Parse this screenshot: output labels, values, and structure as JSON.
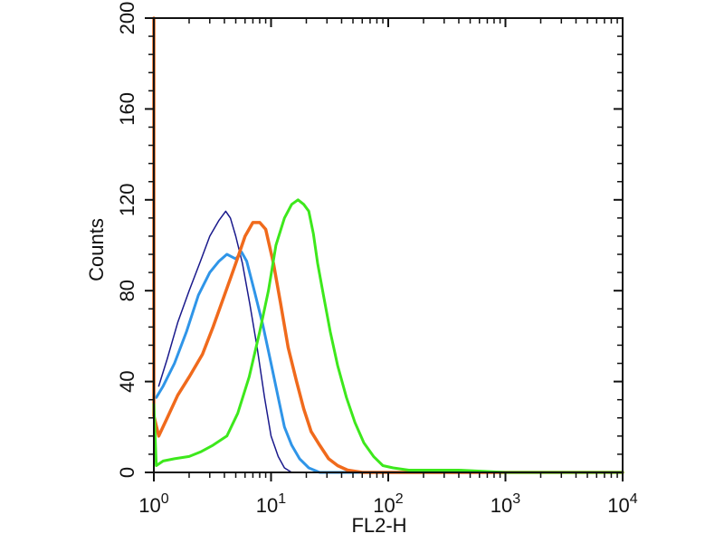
{
  "chart_data": {
    "type": "line",
    "xlabel": "FL2-H",
    "ylabel": "Counts",
    "x_scale": "log",
    "xlim": [
      1,
      10000
    ],
    "ylim": [
      0,
      200
    ],
    "grid": false,
    "legend": "none",
    "x_ticks": [
      {
        "value": 1,
        "base": "10",
        "exp": "0"
      },
      {
        "value": 10,
        "base": "10",
        "exp": "1"
      },
      {
        "value": 100,
        "base": "10",
        "exp": "2"
      },
      {
        "value": 1000,
        "base": "10",
        "exp": "3"
      },
      {
        "value": 10000,
        "base": "10",
        "exp": "4"
      }
    ],
    "y_ticks": [
      0,
      40,
      80,
      120,
      160,
      200
    ],
    "series": [
      {
        "color": "#1a1a8c",
        "stroke": 1.5,
        "points": [
          [
            1.1,
            38
          ],
          [
            1.3,
            50
          ],
          [
            1.6,
            66
          ],
          [
            2.0,
            80
          ],
          [
            2.5,
            93
          ],
          [
            3.0,
            104
          ],
          [
            3.6,
            111
          ],
          [
            4.1,
            115
          ],
          [
            4.5,
            112
          ],
          [
            5.0,
            104
          ],
          [
            5.7,
            92
          ],
          [
            6.6,
            74
          ],
          [
            7.6,
            55
          ],
          [
            8.8,
            33
          ],
          [
            10,
            16
          ],
          [
            11.5,
            7
          ],
          [
            13,
            2
          ],
          [
            15,
            0
          ],
          [
            30,
            0
          ],
          [
            10000,
            0
          ]
        ]
      },
      {
        "color": "#2f95e8",
        "stroke": 3,
        "points": [
          [
            1.05,
            33
          ],
          [
            1.2,
            38
          ],
          [
            1.5,
            48
          ],
          [
            1.9,
            62
          ],
          [
            2.4,
            78
          ],
          [
            3.0,
            88
          ],
          [
            3.6,
            93
          ],
          [
            4.2,
            96
          ],
          [
            5.0,
            94
          ],
          [
            5.6,
            97
          ],
          [
            6.2,
            93
          ],
          [
            7.2,
            80
          ],
          [
            8.5,
            65
          ],
          [
            10,
            48
          ],
          [
            11.5,
            33
          ],
          [
            13,
            20
          ],
          [
            15,
            12
          ],
          [
            17.5,
            6
          ],
          [
            21,
            2
          ],
          [
            26,
            0
          ],
          [
            60,
            0
          ],
          [
            10000,
            0
          ]
        ]
      },
      {
        "color": "#f06a1c",
        "stroke": 3.5,
        "points": [
          [
            1.0,
            200
          ],
          [
            1.0,
            25
          ],
          [
            1.1,
            16
          ],
          [
            1.3,
            24
          ],
          [
            1.6,
            34
          ],
          [
            2.0,
            42
          ],
          [
            2.6,
            52
          ],
          [
            3.2,
            64
          ],
          [
            4.0,
            78
          ],
          [
            5.0,
            92
          ],
          [
            6.0,
            104
          ],
          [
            7.0,
            110
          ],
          [
            8.0,
            110
          ],
          [
            9.0,
            107
          ],
          [
            10.5,
            92
          ],
          [
            12,
            75
          ],
          [
            14,
            55
          ],
          [
            16.5,
            40
          ],
          [
            19,
            28
          ],
          [
            22,
            18
          ],
          [
            26,
            12
          ],
          [
            31,
            6
          ],
          [
            37,
            3
          ],
          [
            45,
            1
          ],
          [
            60,
            0
          ],
          [
            10000,
            0
          ]
        ]
      },
      {
        "color": "#3de81c",
        "stroke": 3,
        "points": [
          [
            1.0,
            30
          ],
          [
            1.05,
            3
          ],
          [
            1.2,
            5
          ],
          [
            1.5,
            6
          ],
          [
            2.0,
            7
          ],
          [
            2.5,
            9
          ],
          [
            3.2,
            12
          ],
          [
            4.2,
            16
          ],
          [
            5.2,
            26
          ],
          [
            6.5,
            42
          ],
          [
            8,
            62
          ],
          [
            9.5,
            80
          ],
          [
            11,
            100
          ],
          [
            13,
            112
          ],
          [
            15,
            118
          ],
          [
            17,
            120
          ],
          [
            19,
            118
          ],
          [
            21,
            115
          ],
          [
            23,
            105
          ],
          [
            25,
            92
          ],
          [
            28,
            78
          ],
          [
            32,
            62
          ],
          [
            37,
            47
          ],
          [
            44,
            33
          ],
          [
            52,
            22
          ],
          [
            62,
            13
          ],
          [
            75,
            7
          ],
          [
            90,
            3
          ],
          [
            110,
            2
          ],
          [
            150,
            1
          ],
          [
            250,
            1
          ],
          [
            400,
            1
          ],
          [
            1000,
            0
          ],
          [
            10000,
            0
          ]
        ]
      }
    ]
  }
}
